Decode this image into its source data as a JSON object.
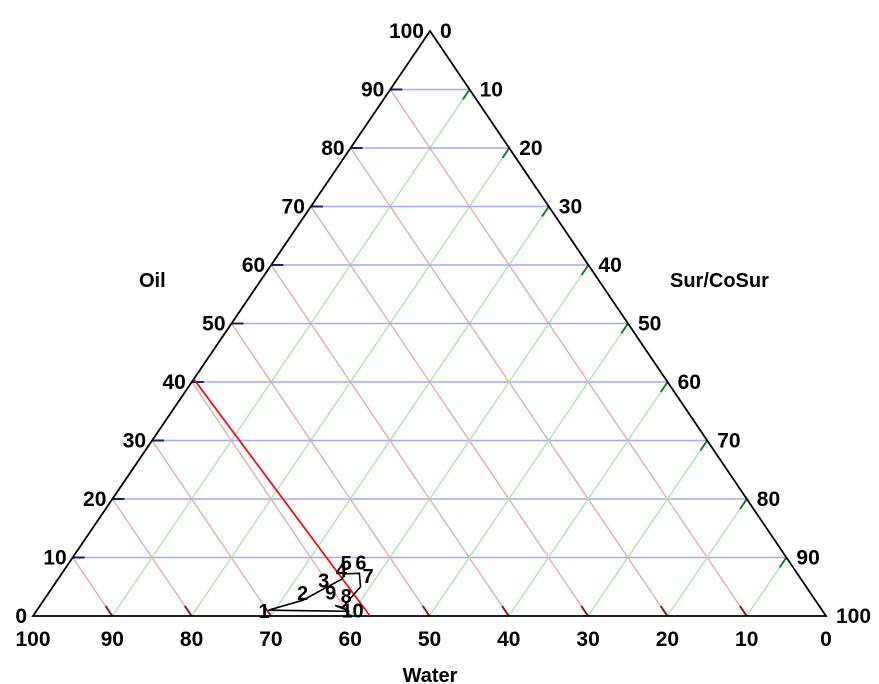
{
  "chart_data": {
    "type": "ternary",
    "title": "",
    "axes": {
      "oil": {
        "label": "Oil",
        "min": 0,
        "max": 100
      },
      "sur_cosur": {
        "label": "Sur/CoSur",
        "min": 0,
        "max": 100
      },
      "water": {
        "label": "Water",
        "min": 0,
        "max": 100
      }
    },
    "ticks": [
      0,
      10,
      20,
      30,
      40,
      50,
      60,
      70,
      80,
      90,
      100
    ],
    "grid": true,
    "grid_step": 10,
    "colors": {
      "oil_grid": "#a9a9f2",
      "sur_grid": "#a9e8a9",
      "water_grid": "#eba9a9",
      "oil_tick": "#1c1c7a",
      "sur_tick": "#17801f",
      "water_tick": "#8a1c1c",
      "boundary": "#000000",
      "dilution_line": "#ee1111",
      "region": "#000000"
    },
    "dilution_line": [
      {
        "oil": 40.5,
        "sur_cosur": 0,
        "water": 59.5
      },
      {
        "oil": 0,
        "sur_cosur": 42.5,
        "water": 57.5
      }
    ],
    "region_points": [
      {
        "label": "1",
        "oil": 1.0,
        "sur_cosur": 29.2,
        "water": 69.8
      },
      {
        "label": "2",
        "oil": 2.7,
        "sur_cosur": 32.7,
        "water": 64.6
      },
      {
        "label": "3",
        "oil": 4.5,
        "sur_cosur": 34.2,
        "water": 61.3
      },
      {
        "label": "4",
        "oil": 6.3,
        "sur_cosur": 35.8,
        "water": 57.9
      },
      {
        "label": "5",
        "oil": 7.2,
        "sur_cosur": 35.7,
        "water": 57.1
      },
      {
        "label": "6",
        "oil": 7.3,
        "sur_cosur": 37.5,
        "water": 55.2
      },
      {
        "label": "7",
        "oil": 5.0,
        "sur_cosur": 38.8,
        "water": 56.2
      },
      {
        "label": "8",
        "oil": 1.5,
        "sur_cosur": 38.3,
        "water": 60.2
      },
      {
        "label": "9",
        "oil": 1.8,
        "sur_cosur": 37.2,
        "water": 61.0
      },
      {
        "label": "10",
        "oil": 0.8,
        "sur_cosur": 39.5,
        "water": 59.7
      }
    ]
  }
}
